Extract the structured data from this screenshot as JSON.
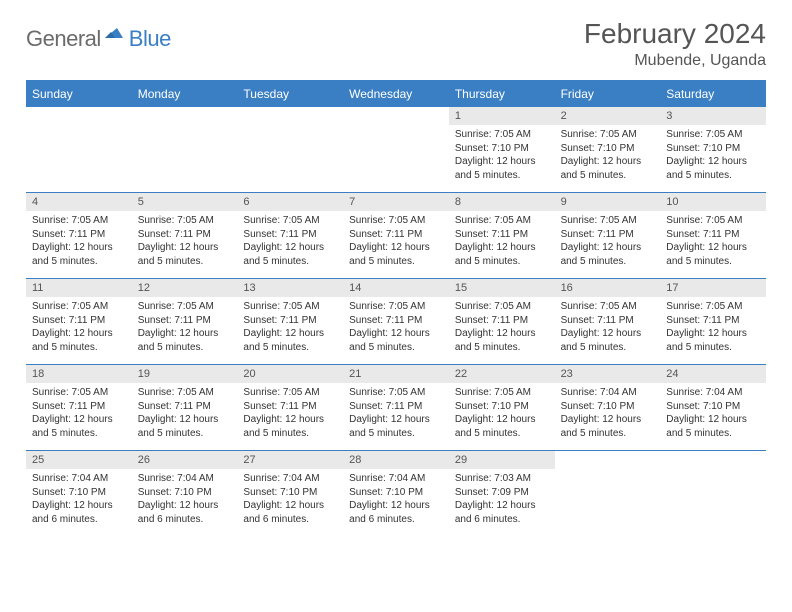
{
  "logo": {
    "text1": "General",
    "text2": "Blue"
  },
  "title": "February 2024",
  "location": "Mubende, Uganda",
  "colors": {
    "brand_blue": "#3a7fc4",
    "header_bg": "#3a7fc4",
    "header_text": "#ffffff",
    "daynum_bg": "#e9e9e9",
    "text": "#333333",
    "muted": "#555555",
    "page_bg": "#ffffff"
  },
  "day_headers": [
    "Sunday",
    "Monday",
    "Tuesday",
    "Wednesday",
    "Thursday",
    "Friday",
    "Saturday"
  ],
  "leading_blanks": 4,
  "days": [
    {
      "n": "1",
      "sunrise": "7:05 AM",
      "sunset": "7:10 PM",
      "daylight": "12 hours and 5 minutes."
    },
    {
      "n": "2",
      "sunrise": "7:05 AM",
      "sunset": "7:10 PM",
      "daylight": "12 hours and 5 minutes."
    },
    {
      "n": "3",
      "sunrise": "7:05 AM",
      "sunset": "7:10 PM",
      "daylight": "12 hours and 5 minutes."
    },
    {
      "n": "4",
      "sunrise": "7:05 AM",
      "sunset": "7:11 PM",
      "daylight": "12 hours and 5 minutes."
    },
    {
      "n": "5",
      "sunrise": "7:05 AM",
      "sunset": "7:11 PM",
      "daylight": "12 hours and 5 minutes."
    },
    {
      "n": "6",
      "sunrise": "7:05 AM",
      "sunset": "7:11 PM",
      "daylight": "12 hours and 5 minutes."
    },
    {
      "n": "7",
      "sunrise": "7:05 AM",
      "sunset": "7:11 PM",
      "daylight": "12 hours and 5 minutes."
    },
    {
      "n": "8",
      "sunrise": "7:05 AM",
      "sunset": "7:11 PM",
      "daylight": "12 hours and 5 minutes."
    },
    {
      "n": "9",
      "sunrise": "7:05 AM",
      "sunset": "7:11 PM",
      "daylight": "12 hours and 5 minutes."
    },
    {
      "n": "10",
      "sunrise": "7:05 AM",
      "sunset": "7:11 PM",
      "daylight": "12 hours and 5 minutes."
    },
    {
      "n": "11",
      "sunrise": "7:05 AM",
      "sunset": "7:11 PM",
      "daylight": "12 hours and 5 minutes."
    },
    {
      "n": "12",
      "sunrise": "7:05 AM",
      "sunset": "7:11 PM",
      "daylight": "12 hours and 5 minutes."
    },
    {
      "n": "13",
      "sunrise": "7:05 AM",
      "sunset": "7:11 PM",
      "daylight": "12 hours and 5 minutes."
    },
    {
      "n": "14",
      "sunrise": "7:05 AM",
      "sunset": "7:11 PM",
      "daylight": "12 hours and 5 minutes."
    },
    {
      "n": "15",
      "sunrise": "7:05 AM",
      "sunset": "7:11 PM",
      "daylight": "12 hours and 5 minutes."
    },
    {
      "n": "16",
      "sunrise": "7:05 AM",
      "sunset": "7:11 PM",
      "daylight": "12 hours and 5 minutes."
    },
    {
      "n": "17",
      "sunrise": "7:05 AM",
      "sunset": "7:11 PM",
      "daylight": "12 hours and 5 minutes."
    },
    {
      "n": "18",
      "sunrise": "7:05 AM",
      "sunset": "7:11 PM",
      "daylight": "12 hours and 5 minutes."
    },
    {
      "n": "19",
      "sunrise": "7:05 AM",
      "sunset": "7:11 PM",
      "daylight": "12 hours and 5 minutes."
    },
    {
      "n": "20",
      "sunrise": "7:05 AM",
      "sunset": "7:11 PM",
      "daylight": "12 hours and 5 minutes."
    },
    {
      "n": "21",
      "sunrise": "7:05 AM",
      "sunset": "7:11 PM",
      "daylight": "12 hours and 5 minutes."
    },
    {
      "n": "22",
      "sunrise": "7:05 AM",
      "sunset": "7:10 PM",
      "daylight": "12 hours and 5 minutes."
    },
    {
      "n": "23",
      "sunrise": "7:04 AM",
      "sunset": "7:10 PM",
      "daylight": "12 hours and 5 minutes."
    },
    {
      "n": "24",
      "sunrise": "7:04 AM",
      "sunset": "7:10 PM",
      "daylight": "12 hours and 5 minutes."
    },
    {
      "n": "25",
      "sunrise": "7:04 AM",
      "sunset": "7:10 PM",
      "daylight": "12 hours and 6 minutes."
    },
    {
      "n": "26",
      "sunrise": "7:04 AM",
      "sunset": "7:10 PM",
      "daylight": "12 hours and 6 minutes."
    },
    {
      "n": "27",
      "sunrise": "7:04 AM",
      "sunset": "7:10 PM",
      "daylight": "12 hours and 6 minutes."
    },
    {
      "n": "28",
      "sunrise": "7:04 AM",
      "sunset": "7:10 PM",
      "daylight": "12 hours and 6 minutes."
    },
    {
      "n": "29",
      "sunrise": "7:03 AM",
      "sunset": "7:09 PM",
      "daylight": "12 hours and 6 minutes."
    }
  ],
  "labels": {
    "sunrise": "Sunrise: ",
    "sunset": "Sunset: ",
    "daylight": "Daylight: "
  }
}
